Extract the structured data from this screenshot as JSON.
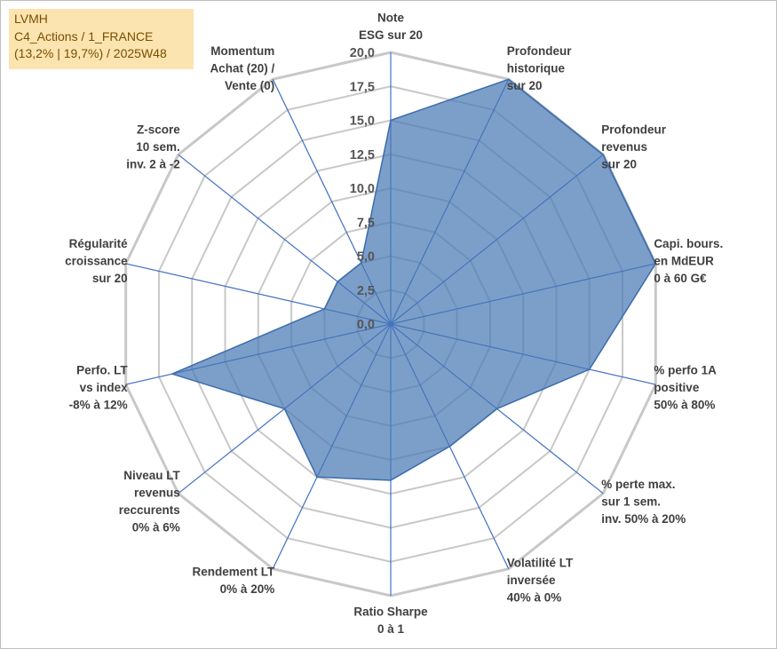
{
  "info": {
    "line1": "LVMH",
    "line2": "C4_Actions / 1_FRANCE",
    "line3": "(13,2% | 19,7%) / 2025W48"
  },
  "colors": {
    "fill": "#4a7ab4",
    "stroke": "#3b6cae",
    "grid": "#c8c8c8",
    "spoke": "#4472c4",
    "info_bg": "#fce4b0"
  },
  "chart_data": {
    "type": "radar",
    "rmin": 0,
    "rmax": 20,
    "ticks": [
      "0,0",
      "2,5",
      "5,0",
      "7,5",
      "10,0",
      "12,5",
      "15,0",
      "17,5",
      "20,0"
    ],
    "axes": [
      {
        "lines": [
          "Note",
          "ESG sur 20"
        ],
        "value": 15
      },
      {
        "lines": [
          "Profondeur",
          "historique",
          "sur 20"
        ],
        "value": 20
      },
      {
        "lines": [
          "Profondeur",
          "revenus",
          "sur 20"
        ],
        "value": 20
      },
      {
        "lines": [
          "Capi. bours.",
          "en MdEUR",
          "0 à 60 G€"
        ],
        "value": 20
      },
      {
        "lines": [
          "% perfo 1A",
          "positive",
          "50% à 80%"
        ],
        "value": 15
      },
      {
        "lines": [
          "% perte max.",
          "sur 1 sem.",
          "inv. 50% à 20%"
        ],
        "value": 10
      },
      {
        "lines": [
          "Volatilité LT",
          "inversée",
          "40% à 0%"
        ],
        "value": 10
      },
      {
        "lines": [
          "Ratio Sharpe",
          "0 à 1"
        ],
        "value": 11.5
      },
      {
        "lines": [
          "Rendement LT",
          "0% à 20%"
        ],
        "value": 12.5
      },
      {
        "lines": [
          "Niveau LT",
          "revenus",
          "reccurents",
          "0% à 6%"
        ],
        "value": 10
      },
      {
        "lines": [
          "Perfo. LT",
          "vs index",
          "-8% à 12%"
        ],
        "value": 16.5
      },
      {
        "lines": [
          "Régularité",
          "croissance",
          "sur 20"
        ],
        "value": 5
      },
      {
        "lines": [
          "Z-score",
          "10 sem.",
          "inv. 2 à -2"
        ],
        "value": 5
      },
      {
        "lines": [
          "Momentum",
          "Achat (20) /",
          "Vente (0)"
        ],
        "value": 5
      }
    ]
  }
}
